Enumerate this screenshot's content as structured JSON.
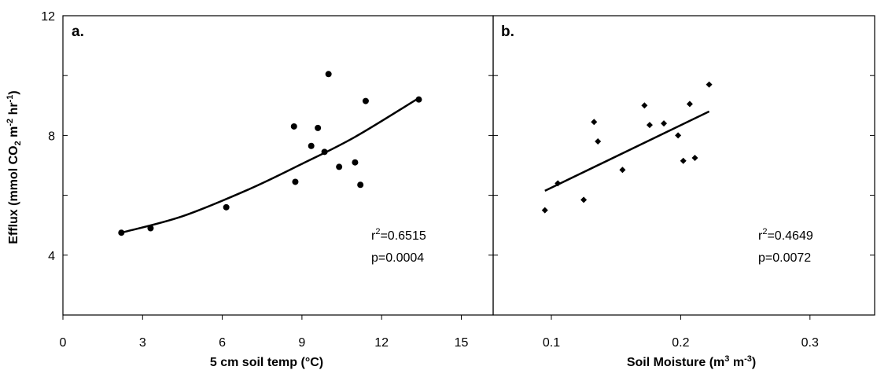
{
  "chart_data": [
    {
      "type": "scatter",
      "panel_label": "a.",
      "xlabel": "5 cm soil temp (°C)",
      "ylabel": "Efflux (mmol CO2 m-2 hr-1)",
      "ylabel_parts": {
        "a": "Efflux (mmol CO",
        "sub": "2",
        "b": " m",
        "sup1": "-2",
        "c": " hr",
        "sup2": "-1",
        "d": ")"
      },
      "xlim": [
        0,
        16.2
      ],
      "ylim": [
        2,
        12
      ],
      "x_ticks": [
        0,
        3,
        6,
        9,
        12,
        15
      ],
      "x_tick_labels": [
        "0",
        "3",
        "6",
        "9",
        "12",
        "15"
      ],
      "y_ticks": [
        4,
        8,
        12
      ],
      "y_tick_labels": [
        "4",
        "8",
        "12"
      ],
      "y_minor_ticks": [
        2,
        6,
        10
      ],
      "marker": "circle",
      "points": [
        {
          "x": 2.2,
          "y": 4.75
        },
        {
          "x": 3.3,
          "y": 4.9
        },
        {
          "x": 6.15,
          "y": 5.6
        },
        {
          "x": 8.7,
          "y": 8.3
        },
        {
          "x": 8.75,
          "y": 6.45
        },
        {
          "x": 9.35,
          "y": 7.65
        },
        {
          "x": 9.6,
          "y": 8.25
        },
        {
          "x": 9.85,
          "y": 7.45
        },
        {
          "x": 10.0,
          "y": 10.05
        },
        {
          "x": 10.4,
          "y": 6.95
        },
        {
          "x": 11.0,
          "y": 7.1
        },
        {
          "x": 11.2,
          "y": 6.35
        },
        {
          "x": 11.4,
          "y": 9.15
        },
        {
          "x": 13.4,
          "y": 9.2
        }
      ],
      "fit": {
        "type": "curve",
        "points": [
          {
            "x": 2.2,
            "y": 4.75
          },
          {
            "x": 4.5,
            "y": 5.3
          },
          {
            "x": 7.0,
            "y": 6.2
          },
          {
            "x": 9.0,
            "y": 7.05
          },
          {
            "x": 11.0,
            "y": 7.95
          },
          {
            "x": 13.4,
            "y": 9.25
          }
        ]
      },
      "stats": {
        "r2_prefix": "r",
        "r2_sup": "2",
        "r2_value": "=0.6515",
        "p": "p=0.0004"
      }
    },
    {
      "type": "scatter",
      "panel_label": "b.",
      "xlabel": "Soil Moisture (m³ m⁻³)",
      "xlabel_parts": {
        "a": "Soil Moisture (m",
        "sup1": "3",
        "b": " m",
        "sup2": "-3",
        "c": ")"
      },
      "xlim": [
        0.055,
        0.35
      ],
      "ylim": [
        2,
        12
      ],
      "x_ticks": [
        0.1,
        0.2,
        0.3
      ],
      "x_tick_labels": [
        "0.1",
        "0.2",
        "0.3"
      ],
      "y_ticks": [
        4,
        8,
        12
      ],
      "y_minor_ticks": [
        2,
        6,
        10
      ],
      "marker": "diamond",
      "points": [
        {
          "x": 0.095,
          "y": 5.5
        },
        {
          "x": 0.105,
          "y": 6.4
        },
        {
          "x": 0.125,
          "y": 5.85
        },
        {
          "x": 0.133,
          "y": 8.45
        },
        {
          "x": 0.136,
          "y": 7.8
        },
        {
          "x": 0.155,
          "y": 6.85
        },
        {
          "x": 0.172,
          "y": 9.0
        },
        {
          "x": 0.176,
          "y": 8.35
        },
        {
          "x": 0.187,
          "y": 8.4
        },
        {
          "x": 0.198,
          "y": 8.0
        },
        {
          "x": 0.202,
          "y": 7.15
        },
        {
          "x": 0.207,
          "y": 9.05
        },
        {
          "x": 0.211,
          "y": 7.25
        },
        {
          "x": 0.222,
          "y": 9.7
        }
      ],
      "fit": {
        "type": "line",
        "points": [
          {
            "x": 0.095,
            "y": 6.15
          },
          {
            "x": 0.222,
            "y": 8.8
          }
        ]
      },
      "stats": {
        "r2_prefix": "r",
        "r2_sup": "2",
        "r2_value": "=0.4649",
        "p": "p=0.0072"
      }
    }
  ]
}
